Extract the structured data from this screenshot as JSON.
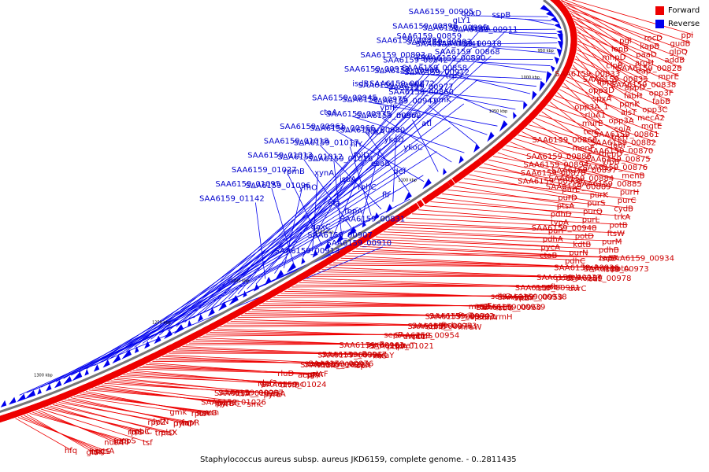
{
  "caption": "Staphylococcus aureus subsp. aureus JKD6159, complete genome. - 0..2811435",
  "legend": {
    "forward_label": "Forward",
    "reverse_label": "Reverse",
    "forward_color": "#ee0000",
    "reverse_color": "#0000ee"
  },
  "backbone_color": "#777777",
  "ticks": [
    "950 kbp",
    "1000 kbp",
    "1050 kbp",
    "1100 kbp",
    "1150 kbp",
    "1200 kbp",
    "1250 kbp",
    "1300 kbp"
  ],
  "forward_genes": [
    "ppi",
    "rocD",
    "pgi",
    "gudB",
    "kapB",
    "lepB",
    "glpQ",
    "paaD",
    "mhpD",
    "addB",
    "argH",
    "clpB",
    "SAA6159_00828",
    "eap",
    "SAA6159_00833",
    "mprE",
    "SAA6159_00835",
    "appB",
    "SAA6159_00838",
    "appD",
    "opp3D",
    "opp3F",
    "fabH",
    "spxA",
    "fabB",
    "ppnK",
    "opp3A_1",
    "opp3C",
    "alsT",
    "rluA1",
    "mecA2",
    "opp3A",
    "murE",
    "mgtE",
    "coiA",
    "terC",
    "SAA6159_00861",
    "trkH",
    "SAA6159_00866",
    "SAA6159_00882",
    "fabI",
    "menF",
    "SAA6159_00870",
    "menD",
    "SAA6159_00886",
    "SAA6159_00875",
    "yfbB",
    "SAA6159_00894",
    "SAA6159_00876",
    "SAA6159_00897",
    "SAA6159_00878",
    "menB",
    "SAA6159_00884",
    "SAA6159_00908",
    "SAA6159_00885",
    "SAA6159_00889",
    "purE",
    "purH",
    "purK",
    "purD",
    "purC",
    "purS",
    "ptsA",
    "cydB",
    "purQ",
    "pdhD",
    "trkA",
    "purL",
    "typA",
    "potB",
    "SAA6159_00948",
    "purF",
    "ftsW",
    "potD",
    "pdhA",
    "purM",
    "kdtB",
    "pycA",
    "pdhB",
    "purN",
    "ctaB",
    "isdC",
    "pdhC",
    "SAA6159_00934",
    "zapA",
    "isdD",
    "SAA6159_00973",
    "potA",
    "SAA6159_00936",
    "trxA",
    "isdE",
    "SAA6159_00978",
    "potC",
    "SAA6159_00937",
    "ecb",
    "uvrC",
    "isdF",
    "SAA6159_00981",
    "efb",
    "scc",
    "srtB",
    "rpmF",
    "SAA6159_00959",
    "SAA6159_00938",
    "sdhC",
    "isdG",
    "SAA6159_00960",
    "SAA6159_00939",
    "mraZ",
    "argF",
    "sdhA",
    "spoU/trmH",
    "SAA6159_00972",
    "SAA6159_00942",
    "ftsZ",
    "mraW",
    "sdhB",
    "SAA6159_00974",
    "SAA6159_00953",
    "ftsL",
    "arcC1",
    "murI",
    "pheS",
    "SAA6159_00954",
    "sepF",
    "pbpA",
    "SAA6159_01021",
    "pheT",
    "SAA6159_00963",
    "pyrR",
    "ileS",
    "mraY",
    "SAA6159_00996",
    "SAA6159_00967",
    "carB",
    "lspA",
    "murD",
    "SAA6159_01022",
    "SAA6159_00998",
    "SAA6159_00976",
    "acpP",
    "rsgA",
    "priA",
    "pyrF",
    "rluD",
    "divIB",
    "SAA6159_01024",
    "rnc",
    "rpe",
    "def2",
    "pyrE",
    "uraA",
    "ftsA",
    "SAA6159_01025",
    "SAA6159_00997",
    "smc",
    "fmt",
    "pyrB",
    "ylmG",
    "SAA6159_01026",
    "rpsP",
    "ftsY",
    "recG",
    "sun",
    "gmk",
    "pyrC",
    "rimM",
    "fapR",
    "rpoZ",
    "lytN",
    "trmD",
    "plsX",
    "rplS",
    "fmhC",
    "polC",
    "tsf",
    "nusA",
    "frr",
    "infB",
    "uppS",
    "gid",
    "ftsK",
    "mutS",
    "pgsA",
    "hfq"
  ],
  "reverse_genes": [
    "SAA6159_00905",
    "qoxD",
    "sspB",
    "SAA6159_00896",
    "SAA6159_00895",
    "SAA6159_00911",
    "SAA6159_00883",
    "SAA6159_00903",
    "SAA6159_00918",
    "SAA6159_00893",
    "qoxB",
    "SAA6159_00890",
    "SAA6159_00933",
    "SAA6159_00906",
    "SAA6159_00912",
    "isdB",
    "SAA6159_00964",
    "SAA6159_00977",
    "SAA6159_00945",
    "SAA6159_00975",
    "SAA6159_00941",
    "ctaA",
    "SAA6159_00935",
    "SAA6159_00962",
    "SAA6159_00961",
    "SAA6159_00966",
    "SAA6159_00980",
    "SAA6159_01018",
    "SAA6159_01017",
    "hlY",
    "SAA6159_01013",
    "SAA6159_01012",
    "SAA6159_01016",
    "SAA6159_01027",
    "rpmB",
    "xynA",
    "SAA6159_01095",
    "SAA6159_01096",
    "yfhO",
    "SAA6159_01142",
    "gLY1",
    "bsaA",
    "SAA6159_00859",
    "SAA6159_00841",
    "SAA6159_00868",
    "SAA6159_00842",
    "SAA6159_00858",
    "trpS",
    "SAA6159_00872",
    "SAA6159_00860",
    "comK",
    "ypfP",
    "menA",
    "atl",
    "qoxA",
    "ykoD",
    "ykoC",
    "folD",
    "esaB",
    "def",
    "isdA",
    "rnhC",
    "flr",
    "eta",
    "fbpA",
    "SAA6159_00831",
    "qoxC",
    "SAA6159_00907",
    "SAA6159_00910",
    "SAA6159_00913"
  ]
}
